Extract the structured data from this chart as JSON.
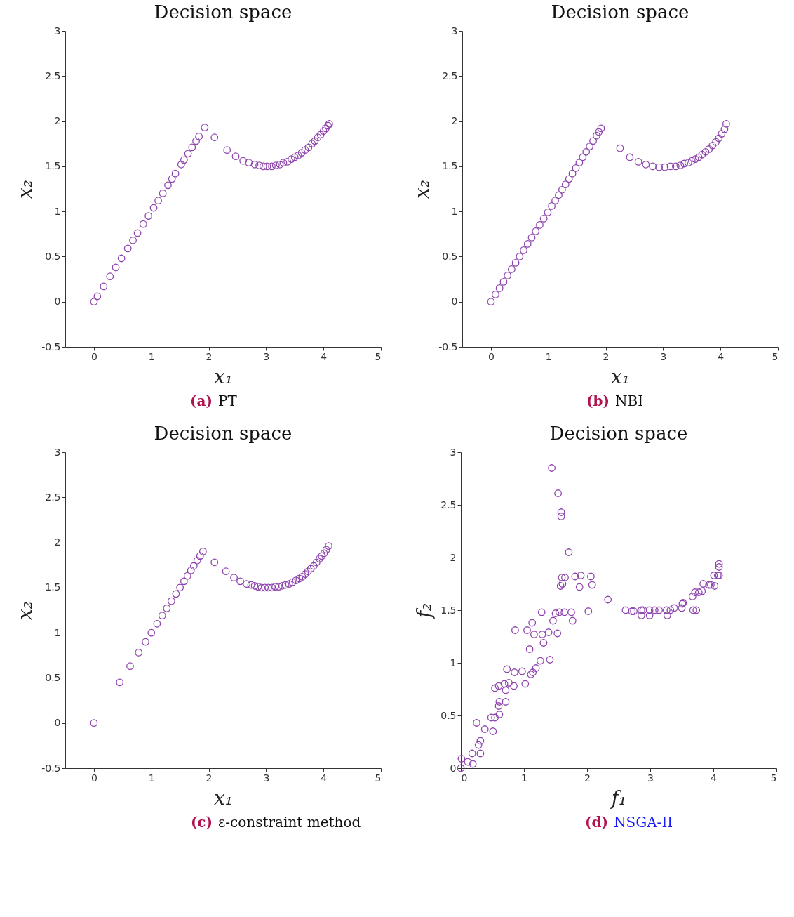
{
  "chart_data": [
    {
      "type": "scatter",
      "title": "Decision space",
      "xlabel": "x₁",
      "ylabel": "x₂",
      "annotations": [
        "(a)",
        "PT"
      ],
      "marker": "circle",
      "xlim": [
        -0.5,
        5
      ],
      "ylim": [
        -0.5,
        3
      ],
      "xticks": [
        0,
        1,
        2,
        3,
        4,
        5
      ],
      "yticks": [
        -0.5,
        0,
        0.5,
        1,
        1.5,
        2,
        2.5,
        3
      ],
      "series": [
        {
          "color": "#8e44ad",
          "x": [
            0,
            0.06,
            0.17,
            0.28,
            0.38,
            0.48,
            0.59,
            0.68,
            0.76,
            0.86,
            0.95,
            1.04,
            1.12,
            1.2,
            1.29,
            1.36,
            1.42,
            1.52,
            1.57,
            1.64,
            1.71,
            1.78,
            1.83,
            1.93,
            2.1,
            2.32,
            2.47,
            2.6,
            2.7,
            2.8,
            2.88,
            2.95,
            3.02,
            3.1,
            3.17,
            3.24,
            3.3,
            3.37,
            3.44,
            3.5,
            3.56,
            3.62,
            3.68,
            3.74,
            3.8,
            3.85,
            3.9,
            3.95,
            4.0,
            4.04,
            4.08,
            4.1
          ],
          "values": [
            0,
            0.06,
            0.17,
            0.28,
            0.38,
            0.48,
            0.59,
            0.68,
            0.76,
            0.86,
            0.95,
            1.04,
            1.12,
            1.2,
            1.29,
            1.36,
            1.42,
            1.52,
            1.57,
            1.64,
            1.71,
            1.78,
            1.83,
            1.93,
            1.82,
            1.68,
            1.61,
            1.56,
            1.54,
            1.52,
            1.51,
            1.5,
            1.5,
            1.5,
            1.51,
            1.52,
            1.54,
            1.55,
            1.58,
            1.6,
            1.62,
            1.65,
            1.68,
            1.71,
            1.75,
            1.78,
            1.82,
            1.85,
            1.89,
            1.92,
            1.95,
            1.97
          ]
        }
      ]
    },
    {
      "type": "scatter",
      "title": "Decision space",
      "xlabel": "x₁",
      "ylabel": "x₂",
      "annotations": [
        "(b)",
        "NBI"
      ],
      "marker": "circle",
      "xlim": [
        -0.5,
        5
      ],
      "ylim": [
        -0.5,
        3
      ],
      "xticks": [
        0,
        1,
        2,
        3,
        4,
        5
      ],
      "yticks": [
        -0.5,
        0,
        0.5,
        1,
        1.5,
        2,
        2.5,
        3
      ],
      "series": [
        {
          "color": "#8e44ad",
          "x": [
            0,
            0.08,
            0.15,
            0.22,
            0.29,
            0.36,
            0.43,
            0.5,
            0.57,
            0.64,
            0.71,
            0.78,
            0.85,
            0.92,
            0.99,
            1.06,
            1.12,
            1.18,
            1.24,
            1.3,
            1.36,
            1.42,
            1.48,
            1.54,
            1.6,
            1.66,
            1.72,
            1.78,
            1.84,
            1.88,
            1.92,
            2.25,
            2.42,
            2.57,
            2.7,
            2.82,
            2.93,
            3.03,
            3.13,
            3.22,
            3.3,
            3.37,
            3.44,
            3.5,
            3.56,
            3.62,
            3.68,
            3.74,
            3.8,
            3.86,
            3.92,
            3.97,
            4.02,
            4.07,
            4.1
          ],
          "values": [
            0,
            0.08,
            0.15,
            0.22,
            0.29,
            0.36,
            0.43,
            0.5,
            0.57,
            0.64,
            0.71,
            0.78,
            0.85,
            0.92,
            0.99,
            1.06,
            1.12,
            1.18,
            1.24,
            1.3,
            1.36,
            1.42,
            1.48,
            1.54,
            1.6,
            1.66,
            1.72,
            1.78,
            1.84,
            1.88,
            1.92,
            1.7,
            1.6,
            1.55,
            1.52,
            1.5,
            1.49,
            1.49,
            1.5,
            1.5,
            1.51,
            1.53,
            1.54,
            1.56,
            1.58,
            1.6,
            1.63,
            1.66,
            1.69,
            1.73,
            1.77,
            1.81,
            1.86,
            1.91,
            1.97
          ]
        }
      ]
    },
    {
      "type": "scatter",
      "title": "Decision space",
      "xlabel": "x₁",
      "ylabel": "x₂",
      "annotations": [
        "(c)",
        "ε-constraint method"
      ],
      "marker": "circle",
      "xlim": [
        -0.5,
        5
      ],
      "ylim": [
        -0.5,
        3
      ],
      "xticks": [
        0,
        1,
        2,
        3,
        4,
        5
      ],
      "yticks": [
        -0.5,
        0,
        0.5,
        1,
        1.5,
        2,
        2.5,
        3
      ],
      "series": [
        {
          "color": "#8e44ad",
          "x": [
            0,
            0.45,
            0.63,
            0.78,
            0.9,
            1.0,
            1.1,
            1.19,
            1.27,
            1.35,
            1.43,
            1.5,
            1.57,
            1.63,
            1.69,
            1.74,
            1.8,
            1.85,
            1.9,
            2.1,
            2.3,
            2.44,
            2.55,
            2.66,
            2.74,
            2.8,
            2.86,
            2.92,
            2.98,
            3.04,
            3.1,
            3.16,
            3.22,
            3.28,
            3.34,
            3.4,
            3.46,
            3.52,
            3.58,
            3.63,
            3.68,
            3.73,
            3.78,
            3.83,
            3.88,
            3.93,
            3.97,
            4.01,
            4.05,
            4.09
          ],
          "values": [
            0,
            0.45,
            0.63,
            0.78,
            0.9,
            1.0,
            1.1,
            1.19,
            1.27,
            1.35,
            1.43,
            1.5,
            1.57,
            1.63,
            1.69,
            1.74,
            1.8,
            1.85,
            1.9,
            1.78,
            1.68,
            1.61,
            1.57,
            1.54,
            1.53,
            1.52,
            1.51,
            1.5,
            1.5,
            1.5,
            1.5,
            1.51,
            1.51,
            1.52,
            1.53,
            1.54,
            1.56,
            1.58,
            1.6,
            1.62,
            1.65,
            1.68,
            1.71,
            1.74,
            1.78,
            1.82,
            1.85,
            1.88,
            1.92,
            1.96
          ]
        }
      ]
    },
    {
      "type": "scatter",
      "title": "Decision space",
      "xlabel": "f₁",
      "ylabel": "f₂",
      "annotations": [
        "(d)",
        "NSGA-II"
      ],
      "marker": "circle",
      "xlim": [
        0,
        5
      ],
      "ylim": [
        0,
        3
      ],
      "xticks": [
        0,
        1,
        2,
        3,
        4,
        5
      ],
      "yticks": [
        0,
        0.5,
        1,
        1.5,
        2,
        2.5,
        3
      ],
      "series": [
        {
          "color": "#8e44ad",
          "x": [
            1.44,
            1.54,
            1.59,
            1.59,
            1.71,
            1.6,
            1.65,
            1.58,
            1.61,
            1.81,
            1.9,
            2.06,
            2.08,
            1.88,
            2.33,
            1.28,
            1.5,
            1.56,
            1.64,
            1.75,
            1.77,
            1.46,
            2.02,
            0.86,
            1.05,
            1.13,
            1.16,
            1.29,
            1.39,
            1.53,
            1.31,
            1.09,
            1.26,
            1.41,
            1.11,
            1.14,
            1.19,
            0.97,
            0.85,
            0.73,
            1.02,
            0.84,
            0.76,
            0.69,
            0.71,
            0.6,
            0.54,
            0.61,
            0.6,
            0.71,
            0.61,
            0.48,
            0.54,
            0.51,
            0.25,
            0.38,
            0.31,
            0.28,
            0.31,
            0.18,
            0.11,
            0.19,
            0.01,
            0,
            2.61,
            2.71,
            2.74,
            2.86,
            2.89,
            2.86,
            2.99,
            2.99,
            3.07,
            3.14,
            3.26,
            3.27,
            3.32,
            3.38,
            3.5,
            3.52,
            3.51,
            3.68,
            3.73,
            3.67,
            3.71,
            3.77,
            3.82,
            3.84,
            3.93,
            3.96,
            4.02,
            4.01,
            4.07,
            4.09,
            4.09,
            4.09
          ],
          "values": [
            2.85,
            2.61,
            2.43,
            2.39,
            2.05,
            1.81,
            1.81,
            1.73,
            1.75,
            1.82,
            1.83,
            1.82,
            1.74,
            1.72,
            1.6,
            1.48,
            1.47,
            1.48,
            1.48,
            1.48,
            1.4,
            1.4,
            1.49,
            1.31,
            1.31,
            1.38,
            1.27,
            1.27,
            1.29,
            1.28,
            1.19,
            1.13,
            1.02,
            1.03,
            0.89,
            0.91,
            0.95,
            0.92,
            0.91,
            0.94,
            0.8,
            0.78,
            0.81,
            0.8,
            0.74,
            0.78,
            0.76,
            0.63,
            0.59,
            0.63,
            0.51,
            0.48,
            0.48,
            0.35,
            0.43,
            0.37,
            0.26,
            0.22,
            0.14,
            0.14,
            0.06,
            0.04,
            0.09,
            0,
            1.5,
            1.49,
            1.49,
            1.5,
            1.5,
            1.45,
            1.5,
            1.45,
            1.5,
            1.5,
            1.5,
            1.45,
            1.5,
            1.52,
            1.52,
            1.57,
            1.56,
            1.5,
            1.5,
            1.63,
            1.67,
            1.67,
            1.68,
            1.75,
            1.74,
            1.74,
            1.73,
            1.83,
            1.83,
            1.83,
            1.94,
            1.91
          ]
        }
      ]
    }
  ]
}
